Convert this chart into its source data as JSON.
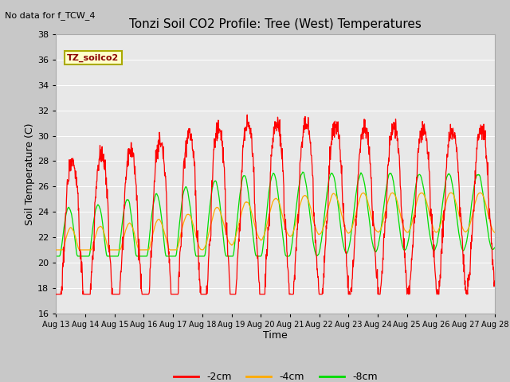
{
  "title": "Tonzi Soil CO2 Profile: Tree (West) Temperatures",
  "subtitle": "No data for f_TCW_4",
  "xlabel": "Time",
  "ylabel": "Soil Temperature (C)",
  "ylim": [
    16,
    38
  ],
  "yticks": [
    16,
    18,
    20,
    22,
    24,
    26,
    28,
    30,
    32,
    34,
    36,
    38
  ],
  "x_tick_labels": [
    "Aug 13",
    "Aug 14",
    "Aug 15",
    "Aug 16",
    "Aug 17",
    "Aug 18",
    "Aug 19",
    "Aug 20",
    "Aug 21",
    "Aug 22",
    "Aug 23",
    "Aug 24",
    "Aug 25",
    "Aug 26",
    "Aug 27",
    "Aug 28"
  ],
  "legend_label": "TZ_soilco2",
  "colors": {
    "2cm": "#ff0000",
    "4cm": "#ffaa00",
    "8cm": "#00dd00",
    "fig_bg": "#c8c8c8",
    "plot_bg": "#e8e8e8",
    "grid": "#ffffff",
    "legend_box_bg": "#ffffcc",
    "legend_box_edge": "#aaaa00"
  },
  "line_labels": [
    "-2cm",
    "-4cm",
    "-8cm"
  ],
  "n_days": 15,
  "n_points": 1440
}
